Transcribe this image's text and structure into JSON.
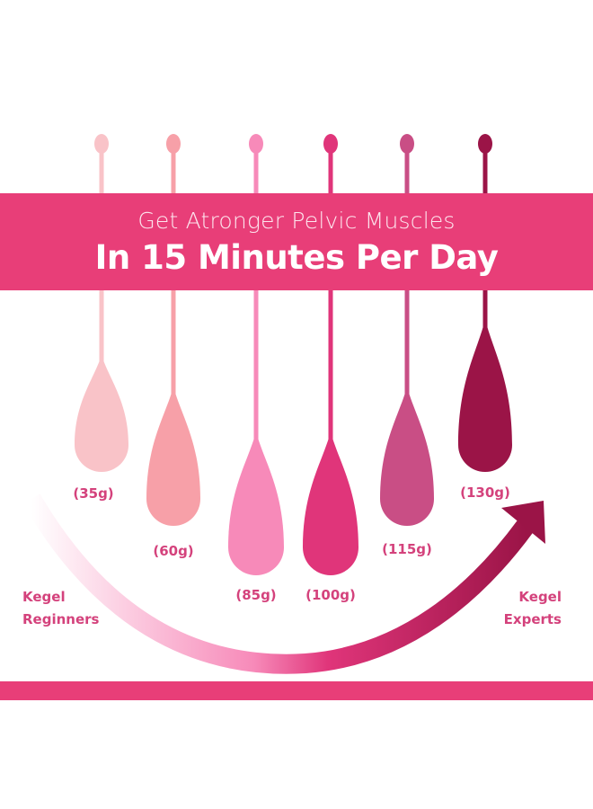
{
  "headline": {
    "line1": "Get Atronger Pelvic Muscles",
    "line2": "In 15 Minutes Per Day"
  },
  "weights": [
    {
      "label": "(35g)",
      "color": "#f9c3c8"
    },
    {
      "label": "(60g)",
      "color": "#f7a0a8"
    },
    {
      "label": "(85g)",
      "color": "#f78ab9"
    },
    {
      "label": "(100g)",
      "color": "#e0357a"
    },
    {
      "label": "(115g)",
      "color": "#c94e85"
    },
    {
      "label": "(130g)",
      "color": "#9b1447"
    }
  ],
  "progress": {
    "start_line1": "Kegel",
    "start_line2": "Reginners",
    "end_line1": "Kegel",
    "end_line2": "Experts"
  },
  "colors": {
    "accent": "#e83e78",
    "text": "#d4427c"
  }
}
